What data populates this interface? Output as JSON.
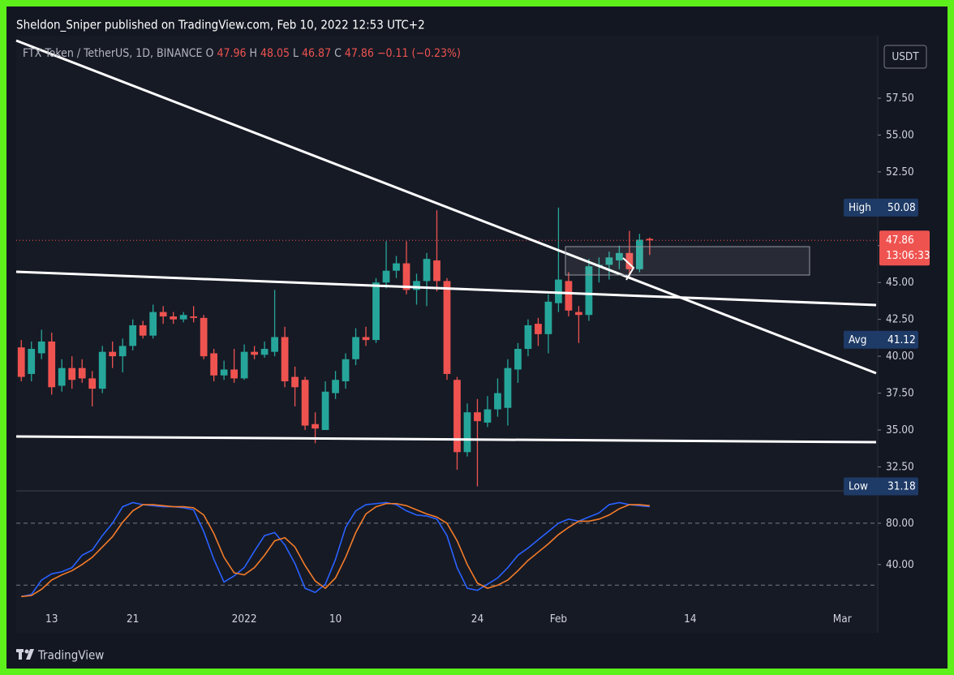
{
  "header": {
    "published": "Sheldon_Sniper published on TradingView.com, Feb 10, 2022 12:53 UTC+2",
    "brand": "TradingView"
  },
  "chart_data": {
    "type": "candlestick",
    "title": "FTX Token / TetherUS, 1D, BINANCE",
    "ohlc_labels": [
      "O",
      "H",
      "L",
      "C"
    ],
    "change": "−0.11 (−0.23%)",
    "currency": "USDT",
    "countdown": "13:06:33",
    "up_color": "#26a69a",
    "down_color": "#ef5350",
    "categories": [
      null,
      null,
      null,
      "13",
      null,
      null,
      null,
      null,
      null,
      null,
      null,
      "21",
      null,
      null,
      null,
      null,
      null,
      null,
      null,
      null,
      null,
      null,
      "2022",
      null,
      null,
      null,
      null,
      null,
      null,
      null,
      null,
      "10",
      null,
      null,
      null,
      null,
      null,
      null,
      null,
      null,
      null,
      null,
      null,
      null,
      null,
      "24",
      null,
      null,
      null,
      null,
      null,
      null,
      null,
      "Feb",
      null,
      null,
      null,
      null,
      null,
      null,
      null,
      null,
      null,
      null,
      null,
      null,
      "14",
      null,
      null,
      null,
      null,
      null,
      null,
      null,
      null,
      null,
      null,
      null,
      null,
      null,
      null,
      "Mar",
      null,
      null,
      null
    ],
    "open": [
      40.6,
      38.8,
      40.2,
      41.0,
      38.0,
      39.2,
      39.2,
      38.5,
      37.8,
      40.3,
      40.0,
      40.7,
      42.1,
      41.4,
      43.0,
      42.7,
      42.5,
      42.7,
      42.6,
      40.2,
      38.7,
      39.1,
      38.5,
      40.3,
      40.1,
      40.3,
      41.3,
      38.6,
      38.4,
      35.4,
      35.0,
      37.5,
      38.3,
      39.8,
      41.3,
      41.1,
      45.0,
      45.8,
      46.3,
      44.5,
      45.1,
      46.5,
      45.1,
      38.4,
      33.5,
      36.2,
      35.5,
      36.4,
      36.5,
      39.1,
      40.5,
      42.2,
      41.5,
      43.6,
      45.1,
      43.0,
      42.8,
      46.1,
      46.2,
      46.5,
      47.0,
      45.9,
      47.96,
      null,
      null,
      null,
      null,
      null,
      null,
      null,
      null,
      null,
      null,
      null,
      null,
      null,
      null,
      null,
      null,
      null,
      null,
      null,
      null,
      null,
      null
    ],
    "high": [
      41.1,
      41.0,
      41.8,
      41.6,
      39.8,
      40.0,
      39.8,
      39.0,
      40.7,
      41.0,
      41.2,
      42.5,
      42.4,
      43.5,
      43.4,
      43.0,
      43.0,
      43.4,
      42.8,
      40.5,
      39.7,
      40.5,
      40.8,
      40.7,
      41.0,
      44.5,
      42.0,
      39.3,
      38.6,
      36.2,
      38.3,
      39.0,
      40.2,
      41.9,
      42.0,
      45.3,
      47.8,
      46.8,
      47.8,
      45.6,
      47.0,
      49.9,
      45.3,
      38.6,
      36.8,
      37.1,
      37.3,
      38.5,
      39.8,
      40.9,
      42.5,
      42.6,
      44.2,
      50.08,
      45.7,
      43.4,
      46.6,
      46.7,
      47.1,
      47.5,
      48.5,
      48.3,
      48.05,
      null,
      null,
      null,
      null,
      null,
      null,
      null,
      null,
      null,
      null,
      null,
      null,
      null,
      null,
      null,
      null,
      null,
      null,
      null,
      null,
      null,
      null
    ],
    "low": [
      38.3,
      38.3,
      39.8,
      37.4,
      37.6,
      37.8,
      38.2,
      36.6,
      37.5,
      39.2,
      38.9,
      40.4,
      41.2,
      41.2,
      42.2,
      42.2,
      42.3,
      42.3,
      39.8,
      38.3,
      38.4,
      38.2,
      38.4,
      39.8,
      39.9,
      40.0,
      37.9,
      36.6,
      35.0,
      34.1,
      35.0,
      37.1,
      37.8,
      39.4,
      40.7,
      40.9,
      44.6,
      45.3,
      44.2,
      43.5,
      43.4,
      44.4,
      38.4,
      32.3,
      33.2,
      31.18,
      35.2,
      35.9,
      35.3,
      38.2,
      40.0,
      40.7,
      40.2,
      43.0,
      42.7,
      40.9,
      42.4,
      45.0,
      45.2,
      45.9,
      45.4,
      45.7,
      46.87,
      null,
      null,
      null,
      null,
      null,
      null,
      null,
      null,
      null,
      null,
      null,
      null,
      null,
      null,
      null,
      null,
      null,
      null,
      null,
      null,
      null,
      null
    ],
    "close": [
      38.6,
      40.5,
      41.0,
      37.9,
      39.2,
      38.4,
      38.5,
      37.8,
      40.3,
      40.0,
      40.7,
      42.1,
      41.4,
      43.0,
      42.7,
      42.5,
      42.8,
      42.6,
      40.0,
      38.7,
      39.1,
      38.5,
      40.3,
      40.1,
      40.5,
      41.3,
      38.3,
      37.9,
      35.3,
      35.1,
      37.6,
      38.4,
      39.8,
      41.3,
      41.1,
      45.0,
      45.8,
      46.3,
      44.5,
      45.1,
      46.6,
      45.1,
      38.8,
      33.5,
      36.2,
      35.6,
      36.4,
      37.5,
      39.2,
      40.5,
      42.1,
      41.5,
      43.7,
      45.2,
      43.1,
      42.8,
      46.1,
      46.2,
      46.7,
      47.0,
      45.9,
      47.9,
      47.86,
      null,
      null,
      null,
      null,
      null,
      null,
      null,
      null,
      null,
      null,
      null,
      null,
      null,
      null,
      null,
      null,
      null,
      null,
      null,
      null,
      null,
      null
    ],
    "ylim": [
      30.93,
      61.68
    ],
    "yticks": [
      {
        "value": 32.5,
        "label": "32.50"
      },
      {
        "value": 35,
        "label": "35.00"
      },
      {
        "value": 37.5,
        "label": "37.50"
      },
      {
        "value": 40,
        "label": "40.00"
      },
      {
        "value": 42.5,
        "label": "42.50"
      },
      {
        "value": 45,
        "label": "45.00"
      },
      {
        "value": 47.5,
        "label": "47.50"
      },
      {
        "value": 50,
        "label": "50.00"
      },
      {
        "value": 52.5,
        "label": "52.50"
      },
      {
        "value": 55,
        "label": "55.00"
      },
      {
        "value": 57.5,
        "label": "57.50"
      }
    ],
    "price_markers": [
      {
        "label": "High",
        "value": 50.08
      },
      {
        "label": "Avg",
        "value": 41.12
      },
      {
        "label": "Low",
        "value": 31.18
      }
    ],
    "oscillator": {
      "ylim": [
        -1,
        110.6
      ],
      "yticks": [
        {
          "value": 80,
          "label": "80.00"
        },
        {
          "value": 40,
          "label": "40.00"
        }
      ],
      "levels": [
        80,
        20
      ],
      "series": [
        {
          "color": "#2962ff",
          "values": [
            9,
            11,
            25,
            31,
            33,
            37,
            49,
            54,
            68,
            80,
            96,
            100,
            98,
            97,
            96,
            96,
            95,
            93,
            72,
            45,
            23,
            29,
            37,
            53,
            68,
            71,
            59,
            41,
            17,
            13,
            21,
            45,
            76,
            92,
            98,
            99,
            100,
            98,
            92,
            88,
            87,
            84,
            68,
            37,
            17,
            15,
            21,
            27,
            37,
            49,
            56,
            64,
            72,
            80,
            84,
            82,
            86,
            90,
            98,
            100,
            98,
            97,
            96,
            null,
            null,
            null,
            null,
            null,
            null,
            null,
            null,
            null,
            null,
            null,
            null,
            null,
            null,
            null,
            null,
            null,
            null,
            null,
            null,
            null,
            null
          ]
        },
        {
          "color": "#f57c28",
          "values": [
            9,
            10,
            16,
            25,
            30,
            34,
            40,
            47,
            57,
            67,
            81,
            92,
            98,
            98,
            97,
            96,
            96,
            95,
            88,
            70,
            47,
            32,
            30,
            37,
            49,
            63,
            66,
            57,
            39,
            24,
            17,
            27,
            47,
            71,
            89,
            96,
            99,
            99,
            97,
            93,
            89,
            86,
            80,
            63,
            40,
            22,
            17,
            20,
            25,
            34,
            44,
            52,
            60,
            69,
            76,
            82,
            82,
            84,
            88,
            94,
            98,
            98,
            97,
            null,
            null,
            null,
            null,
            null,
            null,
            null,
            null,
            null,
            null,
            null,
            null,
            null,
            null,
            null,
            null,
            null,
            null,
            null,
            null,
            null,
            null
          ]
        }
      ]
    }
  }
}
